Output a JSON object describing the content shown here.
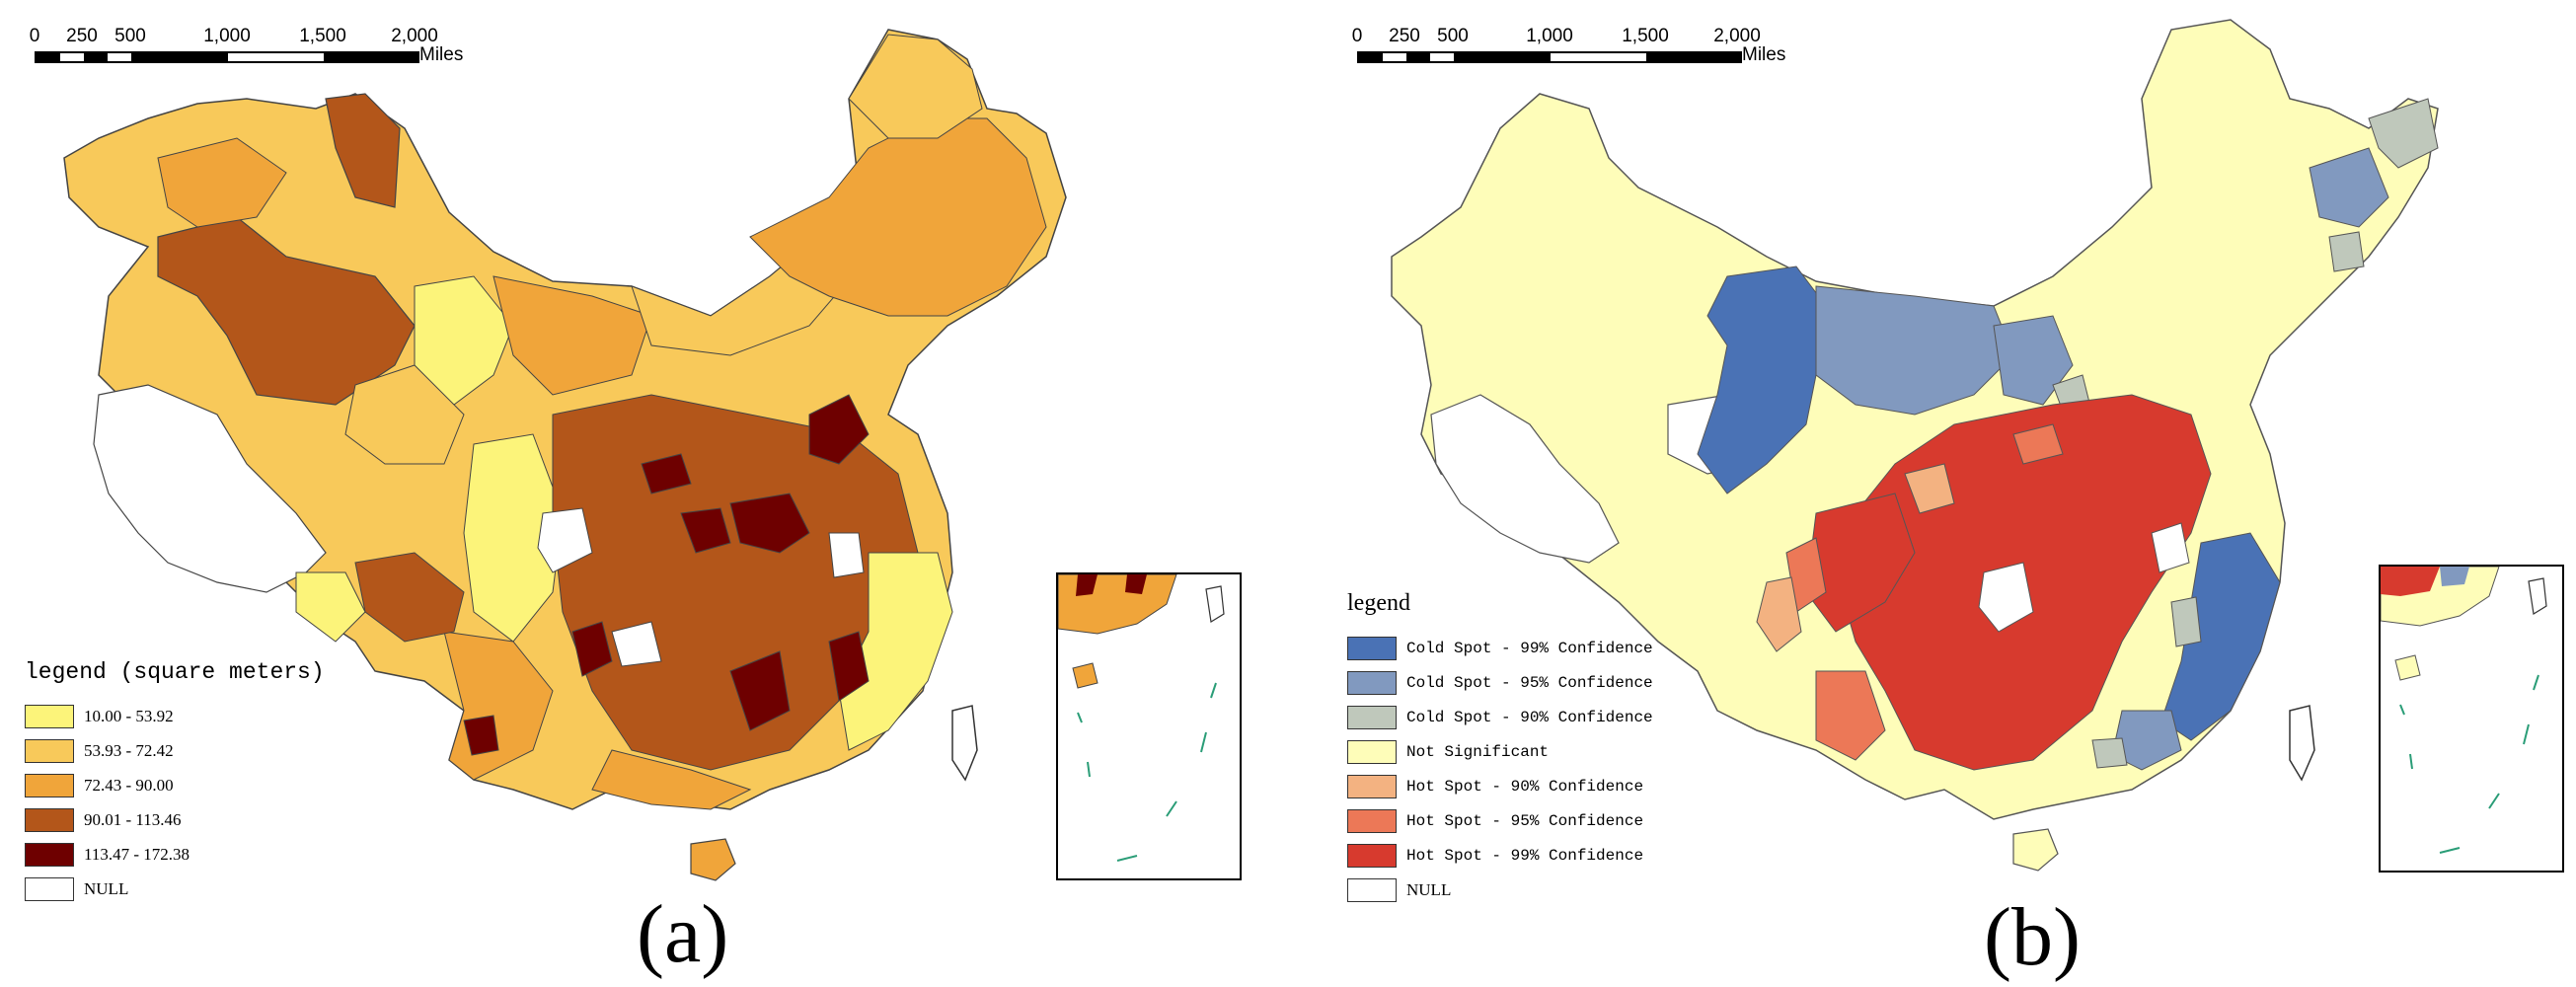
{
  "panels": [
    {
      "id": "a",
      "label": "(a)",
      "scale_bar": {
        "ticks": [
          "0",
          "250",
          "500",
          "1,000",
          "1,500",
          "2,000"
        ],
        "unit": "Miles"
      },
      "legend": {
        "title": "legend (square meters)",
        "items": [
          {
            "label": "10.00 - 53.92",
            "color": "#fcf47a"
          },
          {
            "label": "53.93 - 72.42",
            "color": "#f8c95a"
          },
          {
            "label": "72.43 - 90.00",
            "color": "#f0a53a"
          },
          {
            "label": "90.01 - 113.46",
            "color": "#b3561a"
          },
          {
            "label": "113.47 - 172.38",
            "color": "#6e0000"
          },
          {
            "label": "NULL",
            "color": "#ffffff"
          }
        ]
      }
    },
    {
      "id": "b",
      "label": "(b)",
      "scale_bar": {
        "ticks": [
          "0",
          "250",
          "500",
          "1,000",
          "1,500",
          "2,000"
        ],
        "unit": "Miles"
      },
      "legend": {
        "title": "legend",
        "items": [
          {
            "label": "Cold Spot - 99% Confidence",
            "color": "#4a72b5"
          },
          {
            "label": "Cold Spot - 95% Confidence",
            "color": "#8199bf"
          },
          {
            "label": "Cold Spot - 90% Confidence",
            "color": "#bfc8bb"
          },
          {
            "label": "Not Significant",
            "color": "#fefdb9"
          },
          {
            "label": "Hot Spot - 90% Confidence",
            "color": "#f3b281"
          },
          {
            "label": "Hot Spot - 95% Confidence",
            "color": "#ec7857"
          },
          {
            "label": "Hot Spot - 99% Confidence",
            "color": "#d73a2e"
          },
          {
            "label": "NULL",
            "color": "#ffffff"
          }
        ]
      }
    }
  ]
}
